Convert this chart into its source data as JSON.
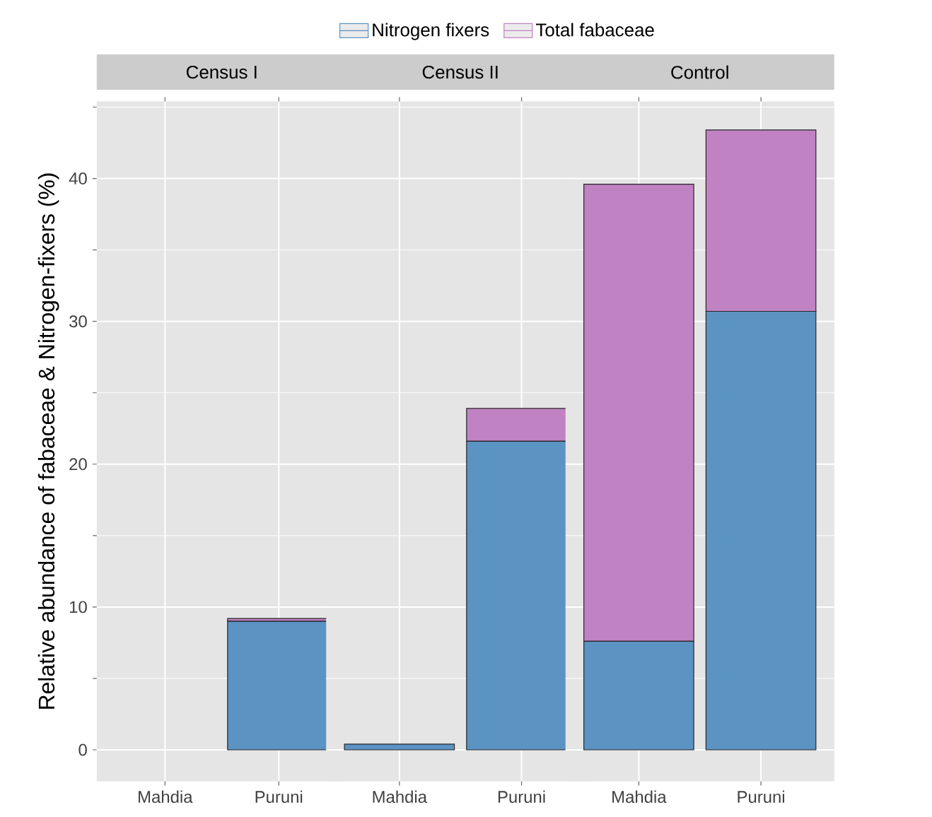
{
  "chart_data": [
    {
      "type": "bar",
      "title": "Census I",
      "ylabel": "Relative abundance of fabaceae & Nitrogen-fixers (%)",
      "categories": [
        "Mahdia",
        "Puruni"
      ],
      "stacked": true,
      "legend": "top",
      "grid": true,
      "ylim": [
        -2.2,
        45.4
      ],
      "yticks": [
        0,
        10,
        20,
        30,
        40
      ],
      "series": [
        {
          "name": "Nitrogen fixers",
          "color": "#5b93c2",
          "values": [
            0,
            9.0
          ]
        },
        {
          "name": "Total fabaceae",
          "color": "#c082c2",
          "values": [
            0,
            0.2
          ]
        }
      ]
    },
    {
      "type": "bar",
      "title": "Census II",
      "categories": [
        "Mahdia",
        "Puruni"
      ],
      "stacked": true,
      "grid": true,
      "ylim": [
        -2.2,
        45.4
      ],
      "yticks": [
        0,
        10,
        20,
        30,
        40
      ],
      "tick_labels": "x",
      "series": [
        {
          "color": "#5b93c2",
          "values": [
            0.4,
            21.6
          ]
        },
        {
          "color": "#c082c2",
          "values": [
            0,
            2.3
          ]
        }
      ]
    },
    {
      "type": "bar",
      "title": "Control",
      "categories": [
        "Mahdia",
        "Puruni"
      ],
      "stacked": true,
      "grid": true,
      "ylim": [
        -2.2,
        45.4
      ],
      "yticks": [
        0,
        10,
        20,
        30,
        40
      ],
      "tick_labels": "x",
      "series": [
        {
          "color": "#5b93c2",
          "values": [
            7.6,
            30.7
          ]
        },
        {
          "color": "#c082c2",
          "values": [
            32.0,
            12.7
          ]
        }
      ]
    }
  ]
}
